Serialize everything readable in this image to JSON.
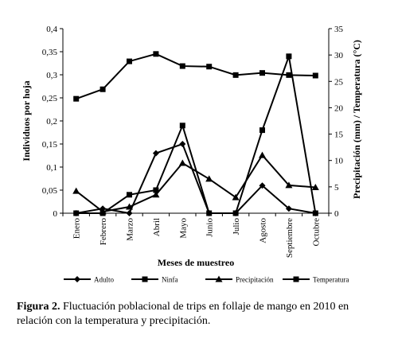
{
  "chart_data": {
    "type": "line",
    "categories": [
      "Enero",
      "Febrero",
      "Marzo",
      "Abril",
      "Mayo",
      "Junio",
      "Julio",
      "Agosto",
      "Septiembre",
      "Octubre"
    ],
    "xlabel": "Meses de muestreo",
    "ylabel": "Individuos por hoja",
    "y2label": "Precipitación (mm) / Temperatura (°C)",
    "ylim": [
      0,
      0.4
    ],
    "y2lim": [
      0,
      35
    ],
    "yticks": [
      "0",
      "0,05",
      "0,1",
      "0,15",
      "0,2",
      "0,25",
      "0,3",
      "0,35",
      "0,4"
    ],
    "y2ticks": [
      "0",
      "5",
      "10",
      "15",
      "20",
      "25",
      "30",
      "35"
    ],
    "grid": false,
    "legend_position": "bottom",
    "series": [
      {
        "name": "Adulto",
        "axis": "left",
        "marker": "diamond",
        "values": [
          0,
          0.01,
          0,
          0.13,
          0.15,
          0,
          0,
          0.06,
          0.01,
          0
        ]
      },
      {
        "name": "Ninfa",
        "axis": "left",
        "marker": "square",
        "values": [
          0,
          0,
          0.04,
          0.05,
          0.19,
          0,
          0,
          0.18,
          0.34,
          0
        ]
      },
      {
        "name": "Precipitación",
        "axis": "right",
        "marker": "triangle",
        "values": [
          4.2,
          0.3,
          1.2,
          3.5,
          9.5,
          6.5,
          3,
          11,
          5.3,
          4.9
        ]
      },
      {
        "name": "Temperatura",
        "axis": "right",
        "marker": "square",
        "values": [
          21.7,
          23.5,
          28.8,
          30.2,
          27.9,
          27.8,
          26.2,
          26.6,
          26.2,
          26.1
        ]
      }
    ]
  },
  "caption": {
    "label": "Figura 2.",
    "text": "Fluctuación poblacional de trips en follaje de mango en 2010 en relación con la temperatura y precipitación."
  }
}
